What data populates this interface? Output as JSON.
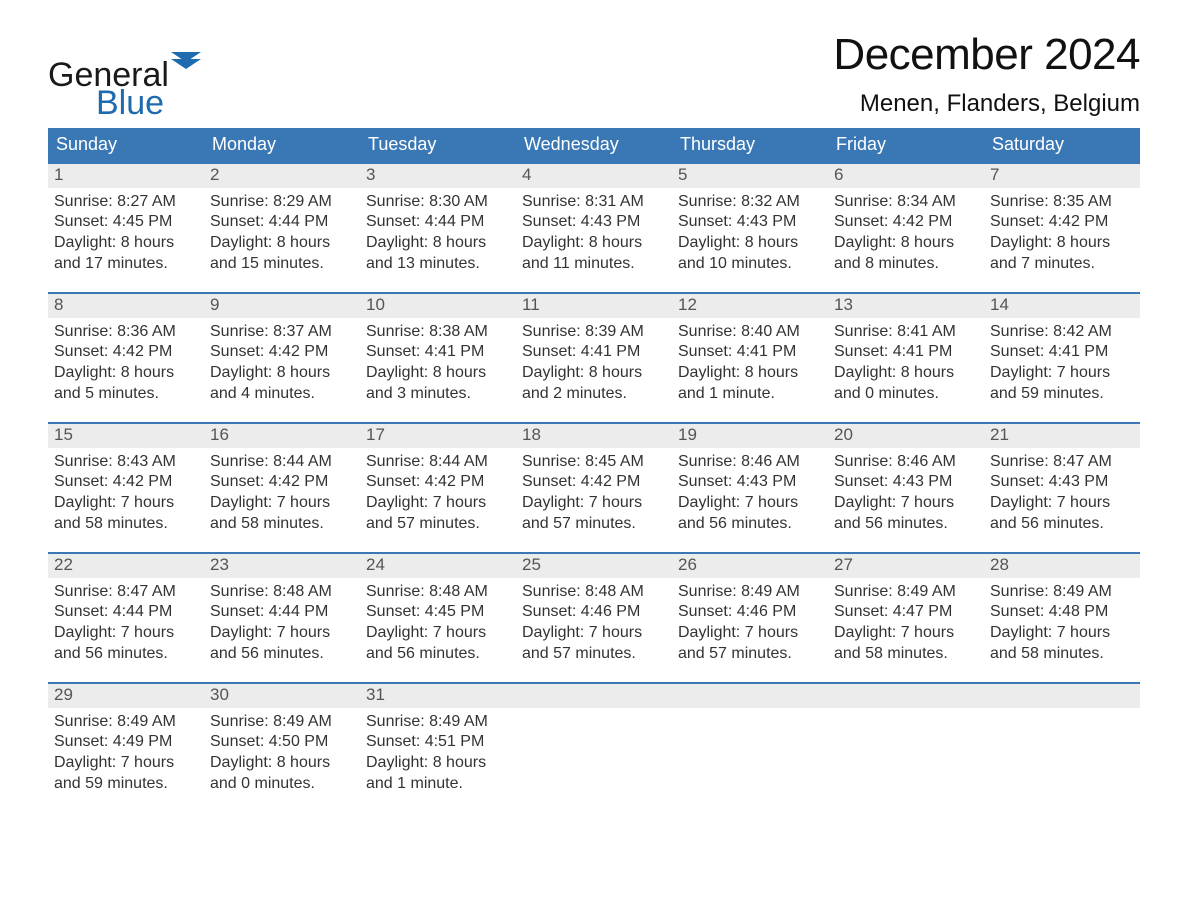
{
  "logo": {
    "word1": "General",
    "word2": "Blue",
    "flag_color": "#1f6bb0",
    "word1_color": "#1a1a1a",
    "word2_color": "#1f6bb0"
  },
  "title": "December 2024",
  "location": "Menen, Flanders, Belgium",
  "colors": {
    "header_bg": "#3a78b5",
    "header_text": "#ffffff",
    "week_border": "#3a78b5",
    "daynum_bg": "#ececec",
    "daynum_text": "#555555",
    "body_text": "#333333",
    "page_bg": "#ffffff"
  },
  "days_of_week": [
    "Sunday",
    "Monday",
    "Tuesday",
    "Wednesday",
    "Thursday",
    "Friday",
    "Saturday"
  ],
  "weeks": [
    [
      {
        "n": "1",
        "sunrise": "Sunrise: 8:27 AM",
        "sunset": "Sunset: 4:45 PM",
        "d1": "Daylight: 8 hours",
        "d2": "and 17 minutes."
      },
      {
        "n": "2",
        "sunrise": "Sunrise: 8:29 AM",
        "sunset": "Sunset: 4:44 PM",
        "d1": "Daylight: 8 hours",
        "d2": "and 15 minutes."
      },
      {
        "n": "3",
        "sunrise": "Sunrise: 8:30 AM",
        "sunset": "Sunset: 4:44 PM",
        "d1": "Daylight: 8 hours",
        "d2": "and 13 minutes."
      },
      {
        "n": "4",
        "sunrise": "Sunrise: 8:31 AM",
        "sunset": "Sunset: 4:43 PM",
        "d1": "Daylight: 8 hours",
        "d2": "and 11 minutes."
      },
      {
        "n": "5",
        "sunrise": "Sunrise: 8:32 AM",
        "sunset": "Sunset: 4:43 PM",
        "d1": "Daylight: 8 hours",
        "d2": "and 10 minutes."
      },
      {
        "n": "6",
        "sunrise": "Sunrise: 8:34 AM",
        "sunset": "Sunset: 4:42 PM",
        "d1": "Daylight: 8 hours",
        "d2": "and 8 minutes."
      },
      {
        "n": "7",
        "sunrise": "Sunrise: 8:35 AM",
        "sunset": "Sunset: 4:42 PM",
        "d1": "Daylight: 8 hours",
        "d2": "and 7 minutes."
      }
    ],
    [
      {
        "n": "8",
        "sunrise": "Sunrise: 8:36 AM",
        "sunset": "Sunset: 4:42 PM",
        "d1": "Daylight: 8 hours",
        "d2": "and 5 minutes."
      },
      {
        "n": "9",
        "sunrise": "Sunrise: 8:37 AM",
        "sunset": "Sunset: 4:42 PM",
        "d1": "Daylight: 8 hours",
        "d2": "and 4 minutes."
      },
      {
        "n": "10",
        "sunrise": "Sunrise: 8:38 AM",
        "sunset": "Sunset: 4:41 PM",
        "d1": "Daylight: 8 hours",
        "d2": "and 3 minutes."
      },
      {
        "n": "11",
        "sunrise": "Sunrise: 8:39 AM",
        "sunset": "Sunset: 4:41 PM",
        "d1": "Daylight: 8 hours",
        "d2": "and 2 minutes."
      },
      {
        "n": "12",
        "sunrise": "Sunrise: 8:40 AM",
        "sunset": "Sunset: 4:41 PM",
        "d1": "Daylight: 8 hours",
        "d2": "and 1 minute."
      },
      {
        "n": "13",
        "sunrise": "Sunrise: 8:41 AM",
        "sunset": "Sunset: 4:41 PM",
        "d1": "Daylight: 8 hours",
        "d2": "and 0 minutes."
      },
      {
        "n": "14",
        "sunrise": "Sunrise: 8:42 AM",
        "sunset": "Sunset: 4:41 PM",
        "d1": "Daylight: 7 hours",
        "d2": "and 59 minutes."
      }
    ],
    [
      {
        "n": "15",
        "sunrise": "Sunrise: 8:43 AM",
        "sunset": "Sunset: 4:42 PM",
        "d1": "Daylight: 7 hours",
        "d2": "and 58 minutes."
      },
      {
        "n": "16",
        "sunrise": "Sunrise: 8:44 AM",
        "sunset": "Sunset: 4:42 PM",
        "d1": "Daylight: 7 hours",
        "d2": "and 58 minutes."
      },
      {
        "n": "17",
        "sunrise": "Sunrise: 8:44 AM",
        "sunset": "Sunset: 4:42 PM",
        "d1": "Daylight: 7 hours",
        "d2": "and 57 minutes."
      },
      {
        "n": "18",
        "sunrise": "Sunrise: 8:45 AM",
        "sunset": "Sunset: 4:42 PM",
        "d1": "Daylight: 7 hours",
        "d2": "and 57 minutes."
      },
      {
        "n": "19",
        "sunrise": "Sunrise: 8:46 AM",
        "sunset": "Sunset: 4:43 PM",
        "d1": "Daylight: 7 hours",
        "d2": "and 56 minutes."
      },
      {
        "n": "20",
        "sunrise": "Sunrise: 8:46 AM",
        "sunset": "Sunset: 4:43 PM",
        "d1": "Daylight: 7 hours",
        "d2": "and 56 minutes."
      },
      {
        "n": "21",
        "sunrise": "Sunrise: 8:47 AM",
        "sunset": "Sunset: 4:43 PM",
        "d1": "Daylight: 7 hours",
        "d2": "and 56 minutes."
      }
    ],
    [
      {
        "n": "22",
        "sunrise": "Sunrise: 8:47 AM",
        "sunset": "Sunset: 4:44 PM",
        "d1": "Daylight: 7 hours",
        "d2": "and 56 minutes."
      },
      {
        "n": "23",
        "sunrise": "Sunrise: 8:48 AM",
        "sunset": "Sunset: 4:44 PM",
        "d1": "Daylight: 7 hours",
        "d2": "and 56 minutes."
      },
      {
        "n": "24",
        "sunrise": "Sunrise: 8:48 AM",
        "sunset": "Sunset: 4:45 PM",
        "d1": "Daylight: 7 hours",
        "d2": "and 56 minutes."
      },
      {
        "n": "25",
        "sunrise": "Sunrise: 8:48 AM",
        "sunset": "Sunset: 4:46 PM",
        "d1": "Daylight: 7 hours",
        "d2": "and 57 minutes."
      },
      {
        "n": "26",
        "sunrise": "Sunrise: 8:49 AM",
        "sunset": "Sunset: 4:46 PM",
        "d1": "Daylight: 7 hours",
        "d2": "and 57 minutes."
      },
      {
        "n": "27",
        "sunrise": "Sunrise: 8:49 AM",
        "sunset": "Sunset: 4:47 PM",
        "d1": "Daylight: 7 hours",
        "d2": "and 58 minutes."
      },
      {
        "n": "28",
        "sunrise": "Sunrise: 8:49 AM",
        "sunset": "Sunset: 4:48 PM",
        "d1": "Daylight: 7 hours",
        "d2": "and 58 minutes."
      }
    ],
    [
      {
        "n": "29",
        "sunrise": "Sunrise: 8:49 AM",
        "sunset": "Sunset: 4:49 PM",
        "d1": "Daylight: 7 hours",
        "d2": "and 59 minutes."
      },
      {
        "n": "30",
        "sunrise": "Sunrise: 8:49 AM",
        "sunset": "Sunset: 4:50 PM",
        "d1": "Daylight: 8 hours",
        "d2": "and 0 minutes."
      },
      {
        "n": "31",
        "sunrise": "Sunrise: 8:49 AM",
        "sunset": "Sunset: 4:51 PM",
        "d1": "Daylight: 8 hours",
        "d2": "and 1 minute."
      },
      {
        "empty": true
      },
      {
        "empty": true
      },
      {
        "empty": true
      },
      {
        "empty": true
      }
    ]
  ]
}
